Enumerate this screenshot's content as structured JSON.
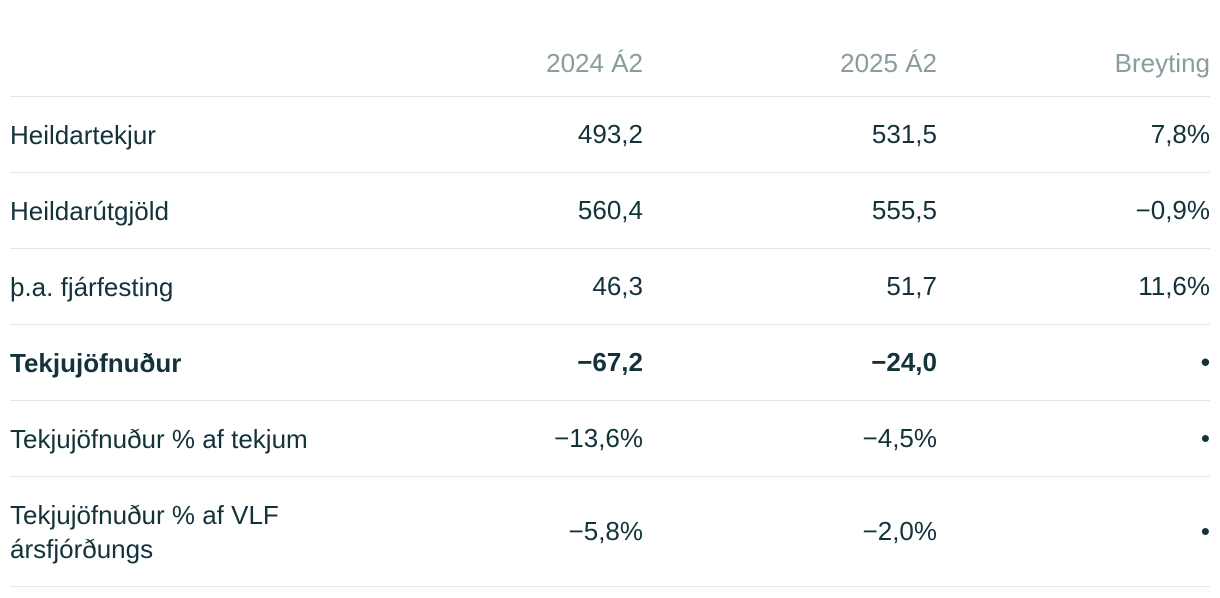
{
  "table": {
    "columns": [
      "2024 Á2",
      "2025 Á2",
      "Breyting"
    ],
    "rows": [
      {
        "label": "Heildartekjur",
        "values": [
          "493,2",
          "531,5",
          "7,8%"
        ]
      },
      {
        "label": "Heildarútgjöld",
        "values": [
          "560,4",
          "555,5",
          "−0,9%"
        ]
      },
      {
        "label": "þ.a. fjárfesting",
        "values": [
          "46,3",
          "51,7",
          "11,6%"
        ]
      },
      {
        "label": "Tekjujöfnuður",
        "values": [
          "−67,2",
          "−24,0",
          "•"
        ],
        "bold": true
      },
      {
        "label": "Tekjujöfnuður % af tekjum",
        "values": [
          "−13,6%",
          "−4,5%",
          "•"
        ]
      },
      {
        "label": "Tekjujöfnuður % af VLF ársfjórðungs",
        "values": [
          "−5,8%",
          "−2,0%",
          "•"
        ]
      }
    ]
  }
}
